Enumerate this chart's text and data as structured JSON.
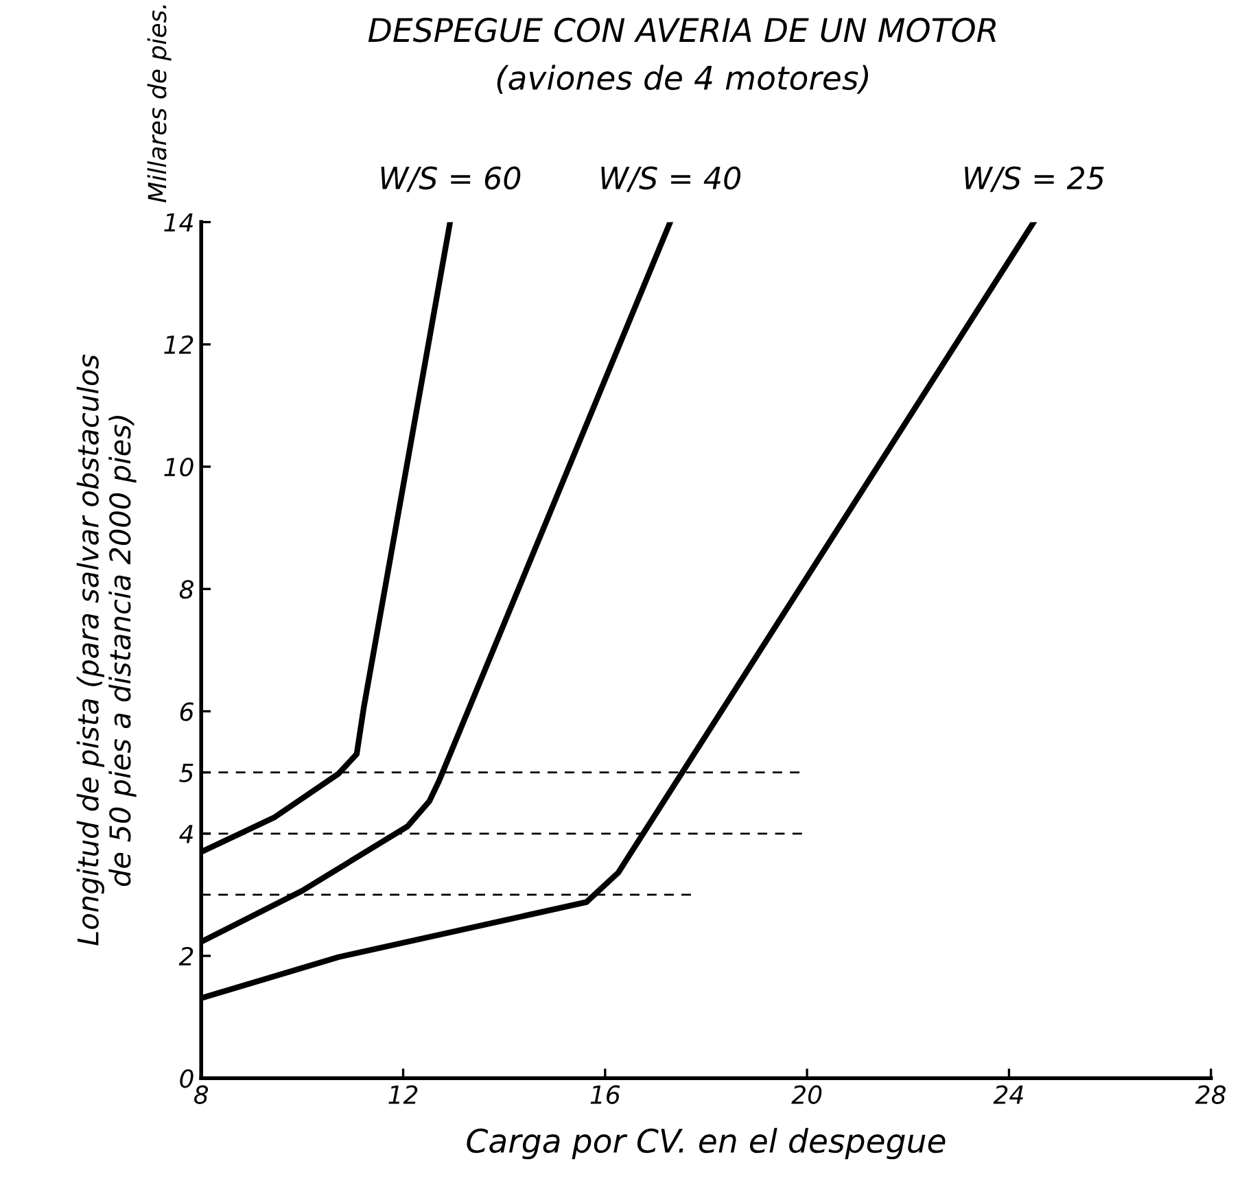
{
  "chart_data": {
    "type": "line",
    "title": "DESPEGUE CON AVERIA DE UN MOTOR",
    "subtitle": "(aviones de 4 motores)",
    "xlabel": "Carga por CV. en el despegue",
    "ylabel": "Longitud de pista (para salvar obstaculos\nde 50 pies a distancia 2000 pies)",
    "xlim": [
      8,
      28
    ],
    "ylim": [
      0,
      14
    ],
    "xticks": [
      8,
      12,
      16,
      20,
      24,
      28
    ],
    "yticks": [
      0,
      2,
      4,
      5,
      6,
      8,
      10,
      12,
      14
    ],
    "grid": false,
    "legend": false,
    "marker": "none",
    "series": [
      {
        "color": "#000000",
        "line_style": "solid",
        "x": [
          8,
          9.44,
          10.72,
          11.08,
          11.22,
          12.93
        ],
        "values": [
          3.7,
          4.26,
          4.98,
          5.3,
          6.06,
          14.0
        ]
      },
      {
        "color": "#000000",
        "line_style": "solid",
        "x": [
          8,
          9.99,
          12.09,
          12.52,
          12.71,
          17.29
        ],
        "values": [
          2.23,
          3.06,
          4.12,
          4.53,
          4.86,
          14.0
        ]
      },
      {
        "color": "#000000",
        "line_style": "solid",
        "x": [
          8,
          10.72,
          15.63,
          16.26,
          24.49
        ],
        "values": [
          1.31,
          1.98,
          2.88,
          3.36,
          14.0
        ]
      },
      {
        "color": "#000000",
        "line_style": "dashed",
        "x": [
          8,
          19.85
        ],
        "values": [
          5,
          5
        ]
      },
      {
        "color": "#000000",
        "line_style": "dashed",
        "x": [
          8,
          19.9
        ],
        "values": [
          4,
          4
        ]
      },
      {
        "color": "#000000",
        "line_style": "dashed",
        "x": [
          8,
          17.7
        ],
        "values": [
          3,
          3
        ]
      }
    ],
    "annotations": [
      {
        "text": "W/S = 60",
        "x": 12.93,
        "y": 14.0
      },
      {
        "text": "W/S = 40",
        "x": 17.29,
        "y": 14.0
      },
      {
        "text": "W/S = 25",
        "x": 24.49,
        "y": 14.0
      },
      "Millares de pies."
    ]
  }
}
